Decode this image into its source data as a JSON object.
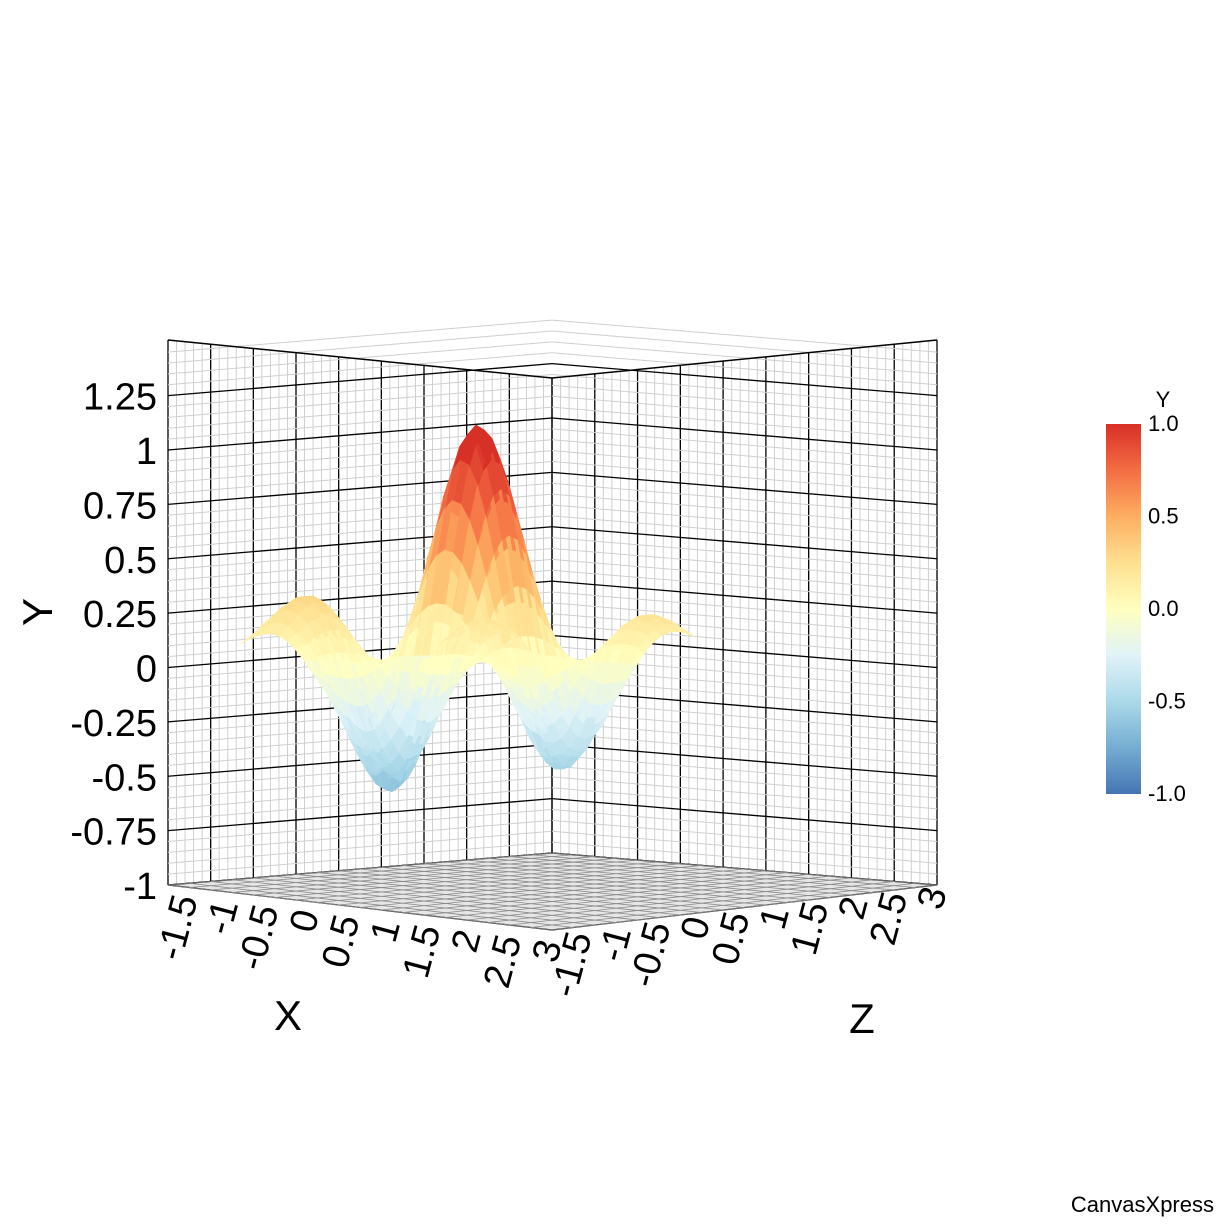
{
  "chart_data": {
    "type": "surface3d",
    "title": "",
    "x_axis": {
      "label": "X",
      "range": [
        -1.5,
        3
      ],
      "ticks": [
        "-1.5",
        "-1",
        "-0.5",
        "0",
        "0.5",
        "1",
        "1.5",
        "2",
        "2.5",
        "3"
      ]
    },
    "y_axis": {
      "label": "Y",
      "range": [
        -1,
        1.25
      ],
      "ticks": [
        "1.25",
        "1",
        "0.75",
        "0.5",
        "0.25",
        "0",
        "-0.25",
        "-0.5",
        "-0.75",
        "-1"
      ]
    },
    "z_axis": {
      "label": "Z",
      "range": [
        -1.5,
        3
      ],
      "ticks": [
        "-1.5",
        "-1",
        "-0.5",
        "0",
        "0.5",
        "1",
        "1.5",
        "2",
        "2.5",
        "3"
      ]
    },
    "surface": {
      "function": "sin(x) * cos(z) * exp(-((x-0.75)^2 + (z-0.75)^2) / 6)",
      "x_steps": 28,
      "z_steps": 28,
      "value_range": [
        -1,
        1
      ]
    },
    "legend": {
      "title": "Y",
      "position": "right",
      "ticks": [
        "1.0",
        "0.5",
        "0.0",
        "-0.5",
        "-1.0"
      ],
      "colors": [
        "#d73027",
        "#f46d43",
        "#fdae61",
        "#fee090",
        "#ffffbf",
        "#e0f3f8",
        "#abd9e9",
        "#74add1",
        "#4575b4"
      ]
    },
    "grid": true
  },
  "footer": {
    "credit": "CanvasXpress"
  }
}
